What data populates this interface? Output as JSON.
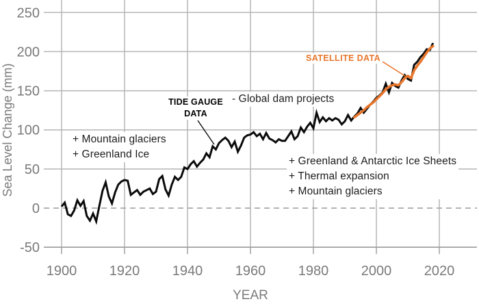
{
  "colors": {
    "accent_orange": "#e8762c",
    "line_black": "#0a0a0a",
    "grid": "#b5b5b5",
    "axis": "#a0a0a0",
    "zero_dash": "#a8a8a8",
    "tick_text": "#7a7a7a",
    "note_text": "#1c1c1c"
  },
  "axes": {
    "y_label": "Sea Level Change (mm)",
    "x_label": "YEAR",
    "y_ticks": [
      250,
      200,
      150,
      100,
      50,
      0,
      -50
    ],
    "x_ticks": [
      1900,
      1920,
      1940,
      1960,
      1980,
      2000,
      2020
    ]
  },
  "annotations": {
    "tide_label": {
      "lines": [
        "TIDE GAUGE",
        "DATA"
      ]
    },
    "satellite_label": {
      "text": "SATELLITE DATA"
    },
    "dam_note": {
      "text": "- Global dam projects"
    },
    "left_note": {
      "lines": [
        "+ Mountain glaciers",
        "+ Greenland Ice"
      ]
    },
    "right_note": {
      "lines": [
        "+ Greenland & Antarctic Ice Sheets",
        "+ Thermal expansion",
        "+ Mountain glaciers"
      ]
    }
  },
  "chart_data": {
    "type": "line",
    "title": "",
    "xlabel": "YEAR",
    "ylabel": "Sea Level Change (mm)",
    "xlim": [
      1894,
      2032
    ],
    "ylim": [
      -50,
      265
    ],
    "grid": true,
    "zero_line": "dashed",
    "legend_position": "inline-annotations",
    "x_step": 1,
    "series": [
      {
        "name": "Tide gauge data",
        "color": "#0a0a0a",
        "start_year": 1900,
        "values": [
          2,
          7,
          -8,
          -10,
          -3,
          10,
          3,
          9,
          -10,
          -16,
          -7,
          -17,
          3,
          22,
          33,
          15,
          6,
          20,
          30,
          34,
          36,
          35,
          17,
          20,
          23,
          17,
          21,
          23,
          25,
          18,
          21,
          37,
          41,
          24,
          16,
          30,
          40,
          36,
          40,
          52,
          50,
          56,
          60,
          53,
          58,
          62,
          70,
          65,
          79,
          75,
          83,
          87,
          90,
          86,
          78,
          85,
          72,
          80,
          90,
          93,
          94,
          97,
          92,
          95,
          88,
          96,
          89,
          87,
          84,
          88,
          86,
          86,
          92,
          98,
          88,
          92,
          103,
          97,
          104,
          109,
          102,
          122,
          110,
          116,
          111,
          115,
          112,
          115,
          113,
          107,
          111,
          119,
          112,
          117,
          121,
          128,
          122,
          127,
          132,
          136,
          141,
          144,
          148,
          159,
          148,
          160,
          156,
          154,
          163,
          170,
          165,
          163,
          183,
          187,
          193,
          197,
          203,
          202,
          211
        ]
      },
      {
        "name": "Satellite data",
        "color": "#e8762c",
        "start_year": 1993,
        "values": [
          116,
          119,
          122,
          125,
          129,
          132,
          135,
          139,
          143,
          147,
          152,
          155,
          157,
          158,
          157,
          161,
          166,
          169,
          166,
          176,
          182,
          187,
          193,
          199,
          204,
          207
        ]
      }
    ]
  }
}
